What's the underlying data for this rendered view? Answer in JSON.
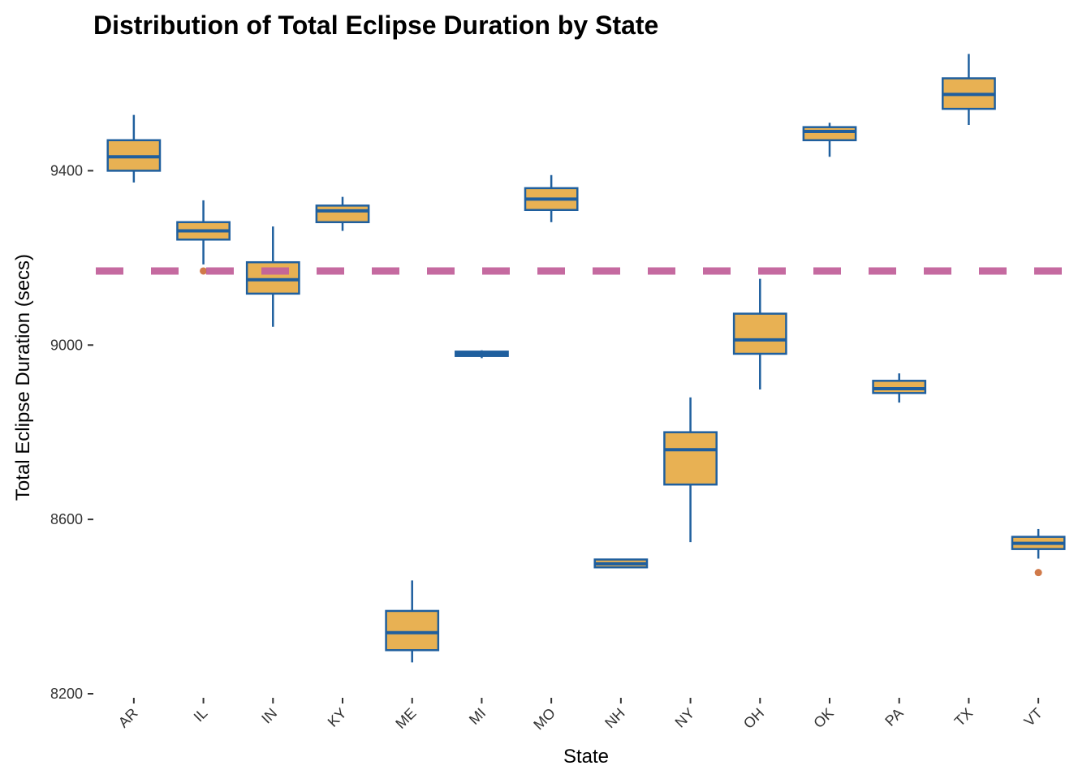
{
  "chart_data": {
    "type": "boxplot",
    "title": "Distribution of Total Eclipse Duration by State",
    "xlabel": "State",
    "ylabel": "Total Eclipse Duration (secs)",
    "ylim": [
      8200,
      9680
    ],
    "y_ticks": [
      8200,
      8600,
      9000,
      9400
    ],
    "grid": false,
    "reference_line": {
      "y": 9170,
      "style": "dashed",
      "color": "#C2629B"
    },
    "colors": {
      "box_fill": "#E8B153",
      "box_stroke": "#1F5F9E",
      "outlier": "#D07A4A"
    },
    "categories": [
      "AR",
      "IL",
      "IN",
      "KY",
      "ME",
      "MI",
      "MO",
      "NH",
      "NY",
      "OH",
      "OK",
      "PA",
      "TX",
      "VT"
    ],
    "boxes": [
      {
        "state": "AR",
        "min": 9373,
        "q1": 9400,
        "median": 9432,
        "q3": 9470,
        "max": 9528,
        "outliers": []
      },
      {
        "state": "IL",
        "min": 9185,
        "q1": 9242,
        "median": 9262,
        "q3": 9282,
        "max": 9332,
        "outliers": [
          9170
        ]
      },
      {
        "state": "IN",
        "min": 9042,
        "q1": 9118,
        "median": 9150,
        "q3": 9190,
        "max": 9272,
        "outliers": []
      },
      {
        "state": "KY",
        "min": 9262,
        "q1": 9282,
        "median": 9308,
        "q3": 9320,
        "max": 9340,
        "outliers": []
      },
      {
        "state": "ME",
        "min": 8272,
        "q1": 8300,
        "median": 8340,
        "q3": 8390,
        "max": 8460,
        "outliers": []
      },
      {
        "state": "MI",
        "min": 8970,
        "q1": 8975,
        "median": 8980,
        "q3": 8985,
        "max": 8988,
        "outliers": []
      },
      {
        "state": "MO",
        "min": 9282,
        "q1": 9310,
        "median": 9335,
        "q3": 9360,
        "max": 9390,
        "outliers": []
      },
      {
        "state": "NH",
        "min": 8490,
        "q1": 8490,
        "median": 8498,
        "q3": 8508,
        "max": 8508,
        "outliers": []
      },
      {
        "state": "NY",
        "min": 8548,
        "q1": 8680,
        "median": 8760,
        "q3": 8800,
        "max": 8880,
        "outliers": []
      },
      {
        "state": "OH",
        "min": 8898,
        "q1": 8980,
        "median": 9012,
        "q3": 9072,
        "max": 9152,
        "outliers": []
      },
      {
        "state": "OK",
        "min": 9432,
        "q1": 9470,
        "median": 9490,
        "q3": 9500,
        "max": 9510,
        "outliers": []
      },
      {
        "state": "PA",
        "min": 8868,
        "q1": 8890,
        "median": 8900,
        "q3": 8918,
        "max": 8935,
        "outliers": []
      },
      {
        "state": "TX",
        "min": 9505,
        "q1": 9542,
        "median": 9575,
        "q3": 9612,
        "max": 9668,
        "outliers": []
      },
      {
        "state": "VT",
        "min": 8510,
        "q1": 8532,
        "median": 8545,
        "q3": 8560,
        "max": 8578,
        "outliers": [
          8478
        ]
      }
    ]
  }
}
